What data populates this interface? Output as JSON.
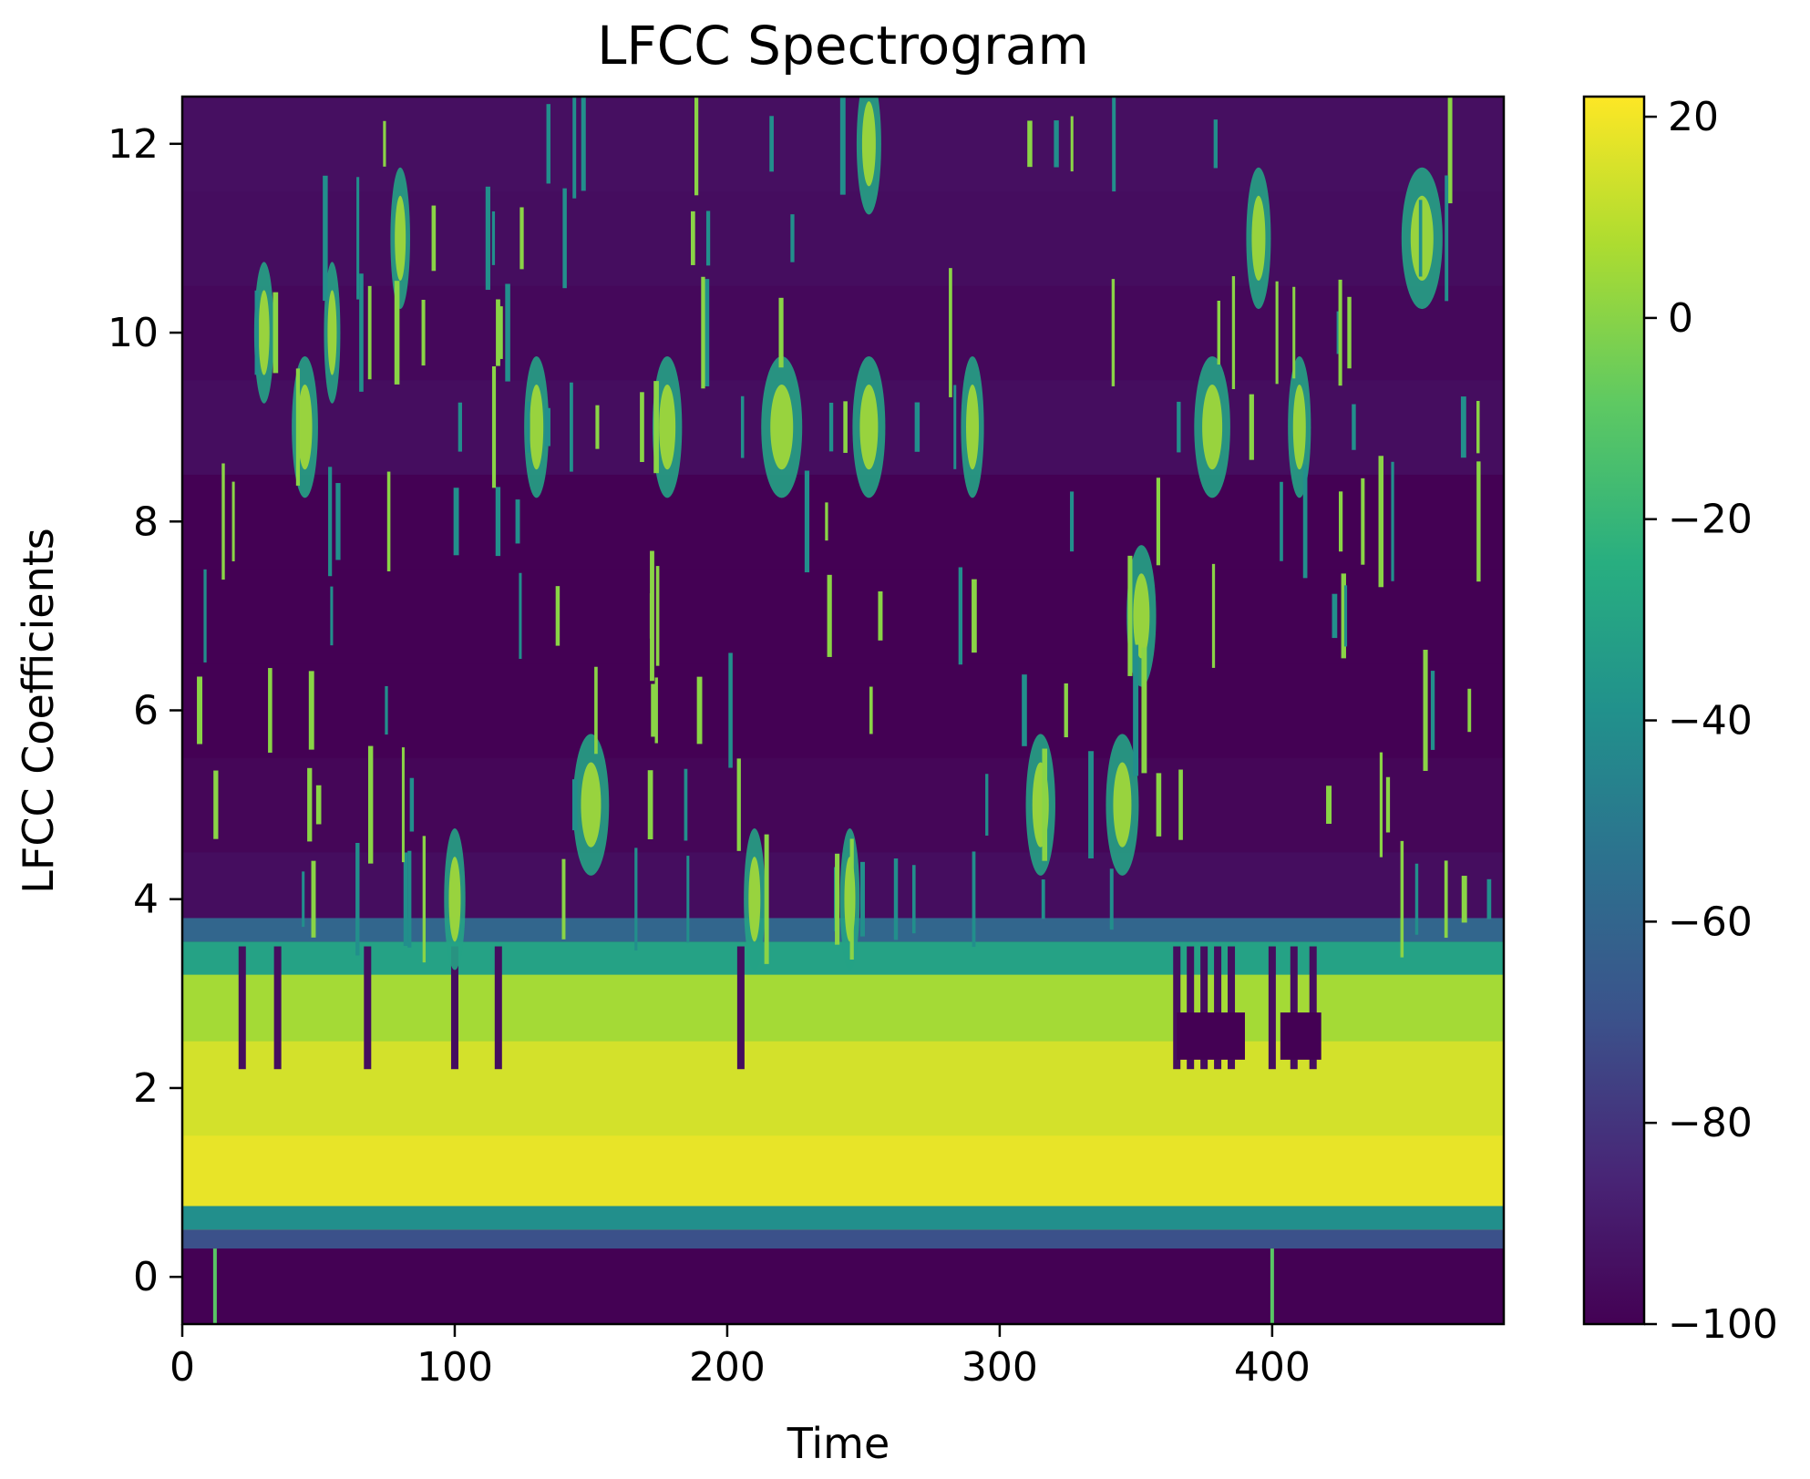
{
  "chart_data": {
    "type": "heatmap",
    "title": "LFCC Spectrogram",
    "xlabel": "Time",
    "ylabel": "LFCC Coefficients",
    "xlim": [
      0,
      485
    ],
    "ylim": [
      -0.5,
      12.5
    ],
    "x_ticks": [
      0,
      100,
      200,
      300,
      400
    ],
    "y_ticks": [
      0,
      2,
      4,
      6,
      8,
      10,
      12
    ],
    "colormap": "viridis",
    "colorbar": {
      "range": [
        -100,
        22
      ],
      "ticks": [
        20,
        0,
        -20,
        -40,
        -60,
        -80,
        -100
      ],
      "tick_labels": [
        "20",
        "0",
        "−20",
        "−40",
        "−60",
        "−80",
        "−100"
      ]
    },
    "colors": {
      "low": "#440154",
      "mid": "#21918c",
      "high": "#fde725"
    },
    "rows": [
      {
        "coefficient": 0,
        "typical_value": -100
      },
      {
        "coefficient": 1,
        "typical_value": 18
      },
      {
        "coefficient": 2,
        "typical_value": 14
      },
      {
        "coefficient": 3,
        "typical_value": 5
      },
      {
        "coefficient": 4,
        "typical_value": -95
      },
      {
        "coefficient": 5,
        "typical_value": -98
      },
      {
        "coefficient": 6,
        "typical_value": -100
      },
      {
        "coefficient": 7,
        "typical_value": -100
      },
      {
        "coefficient": 8,
        "typical_value": -100
      },
      {
        "coefficient": 9,
        "typical_value": -95
      },
      {
        "coefficient": 10,
        "typical_value": -97
      },
      {
        "coefficient": 11,
        "typical_value": -95
      },
      {
        "coefficient": 12,
        "typical_value": -94
      }
    ]
  }
}
